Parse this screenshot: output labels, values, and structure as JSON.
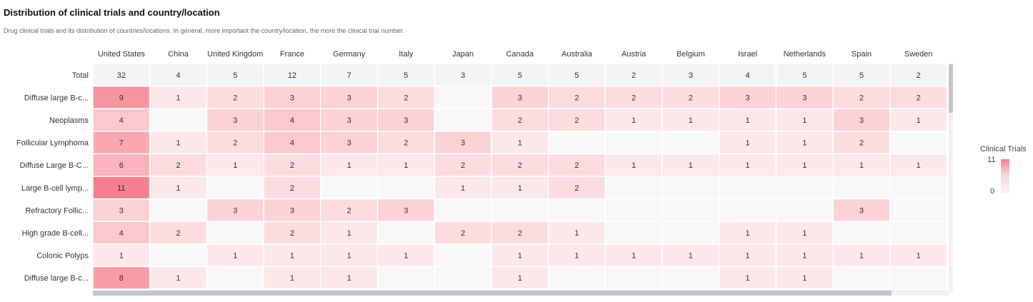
{
  "header": {
    "title": "Distribution of clinical trials and country/location",
    "subtitle": "Drug clinical trials and its distribution of countries/locations. In general, more important the country/location, the more the clinical trial number."
  },
  "legend": {
    "title": "Clinical Trials",
    "max_label": "11",
    "min_label": "0"
  },
  "colors": {
    "high": "#f57f8c",
    "low": "#fdf1f2",
    "empty": "#f8f8f9",
    "total_row": "#f3f4f6"
  },
  "chart_data": {
    "type": "heatmap",
    "title": "Distribution of clinical trials and country/location",
    "x": [
      "United States",
      "China",
      "United Kingdom",
      "France",
      "Germany",
      "Italy",
      "Japan",
      "Canada",
      "Australia",
      "Austria",
      "Belgium",
      "Israel",
      "Netherlands",
      "Spain",
      "Sweden"
    ],
    "y": [
      "Total",
      "Diffuse large B-c...",
      "Neoplasms",
      "Follicular Lymphoma",
      "Diffuse Large B-C...",
      "Large B-cell lymp...",
      "Refractory Follic...",
      "High grade B-cell...",
      "Colonic Polyps",
      "Diffuse large B-c..."
    ],
    "values": [
      [
        32,
        4,
        5,
        12,
        7,
        5,
        3,
        5,
        5,
        2,
        3,
        4,
        5,
        5,
        2
      ],
      [
        9,
        1,
        2,
        3,
        3,
        2,
        null,
        3,
        2,
        2,
        2,
        3,
        3,
        2,
        2
      ],
      [
        4,
        null,
        3,
        4,
        3,
        3,
        null,
        2,
        2,
        1,
        1,
        1,
        1,
        3,
        1
      ],
      [
        7,
        1,
        2,
        4,
        3,
        2,
        3,
        1,
        null,
        null,
        null,
        1,
        1,
        2,
        null
      ],
      [
        6,
        2,
        1,
        2,
        1,
        1,
        2,
        2,
        2,
        1,
        1,
        1,
        1,
        1,
        1
      ],
      [
        11,
        1,
        null,
        2,
        null,
        null,
        1,
        1,
        2,
        null,
        null,
        null,
        null,
        null,
        null
      ],
      [
        3,
        null,
        3,
        3,
        2,
        3,
        null,
        null,
        null,
        null,
        null,
        null,
        null,
        3,
        null
      ],
      [
        4,
        2,
        null,
        2,
        1,
        null,
        2,
        2,
        1,
        null,
        null,
        1,
        1,
        null,
        null
      ],
      [
        1,
        null,
        1,
        1,
        1,
        1,
        null,
        1,
        1,
        1,
        1,
        1,
        1,
        1,
        1
      ],
      [
        8,
        1,
        null,
        1,
        1,
        null,
        null,
        1,
        null,
        null,
        null,
        1,
        1,
        null,
        null
      ]
    ],
    "color_range": [
      0,
      11
    ],
    "legend_title": "Clinical Trials"
  }
}
